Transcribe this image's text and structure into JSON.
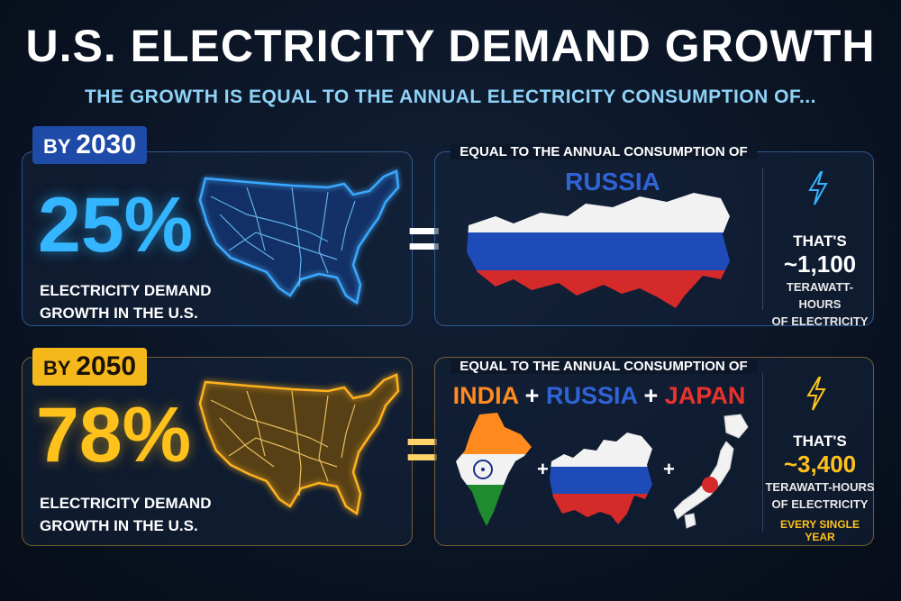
{
  "title": "U.S. ELECTRICITY DEMAND GROWTH",
  "subtitle": "THE GROWTH IS EQUAL TO THE ANNUAL ELECTRICITY CONSUMPTION OF...",
  "colors": {
    "blue_accent": "#33b5ff",
    "gold_accent": "#ffc21c",
    "russia_label": "#2f63d6",
    "india_label": "#ff8a1f",
    "japan_label": "#e8332d"
  },
  "row_2030": {
    "badge_prefix": "BY",
    "badge_year": "2030",
    "percent": "25%",
    "desc_line1": "ELECTRICITY DEMAND",
    "desc_line2": "GROWTH IN THE U.S.",
    "equals": "=",
    "eq_heading": "EQUAL TO THE ANNUAL CONSUMPTION OF",
    "country": "RUSSIA",
    "stat_lead": "THAT'S",
    "stat_value": "~1,100",
    "stat_unit1": "TERAWATT-HOURS",
    "stat_unit2": "OF ELECTRICITY",
    "icon": "lightning-bolt-icon"
  },
  "row_2050": {
    "badge_prefix": "BY",
    "badge_year": "2050",
    "percent": "78%",
    "desc_line1": "ELECTRICITY DEMAND",
    "desc_line2": "GROWTH IN THE U.S.",
    "equals": "=",
    "eq_heading": "EQUAL TO THE ANNUAL CONSUMPTION OF",
    "country1": "INDIA",
    "plus": "+",
    "country2": "RUSSIA",
    "country3": "JAPAN",
    "stat_lead": "THAT'S",
    "stat_value": "~3,400",
    "stat_unit1": "TERAWATT-HOURS",
    "stat_unit2": "OF ELECTRICITY",
    "stat_extra": "EVERY SINGLE YEAR",
    "icon": "lightning-bolt-icon"
  }
}
